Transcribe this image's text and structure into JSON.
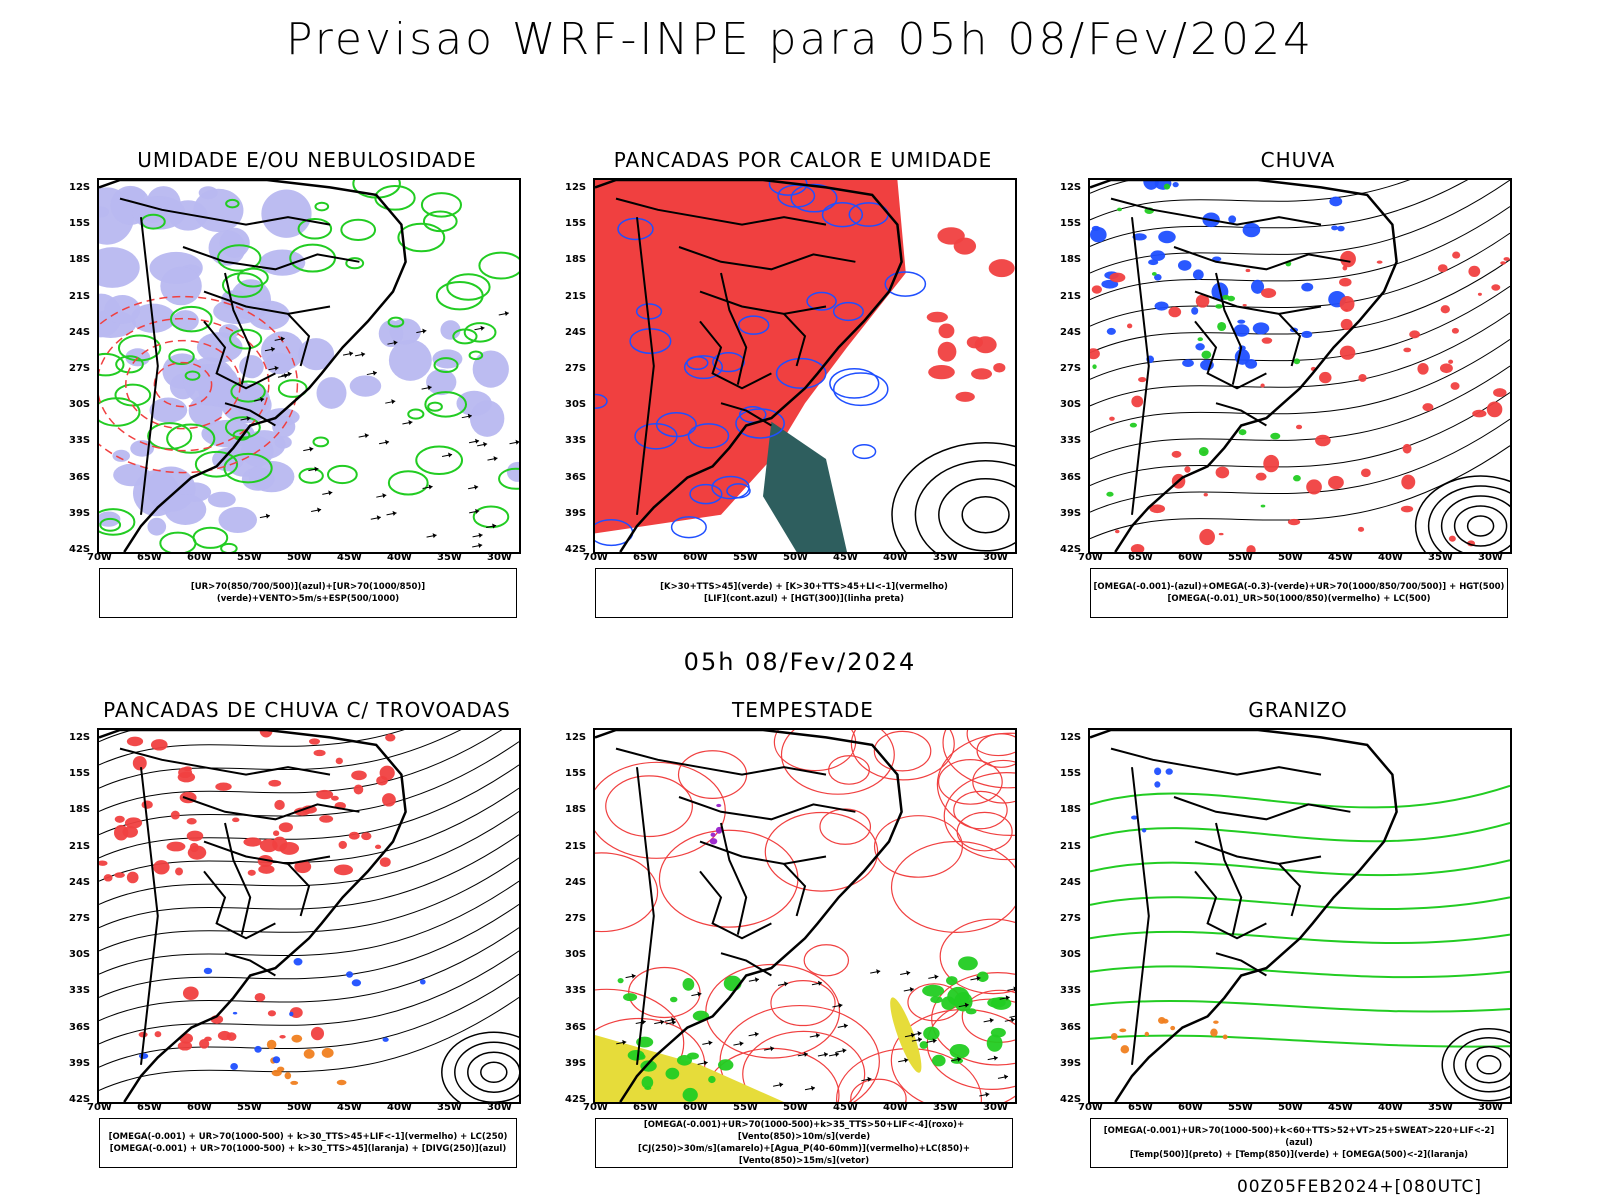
{
  "header": {
    "title": "Previsao WRF-INPE  para 05h 08/Fev/2024",
    "mid_date": "05h 08/Fev/2024",
    "footer": "00Z05FEB2024+[080UTC]"
  },
  "axes": {
    "lat_labels": [
      "12S",
      "15S",
      "18S",
      "21S",
      "24S",
      "27S",
      "30S",
      "33S",
      "36S",
      "39S",
      "42S"
    ],
    "lon_labels": [
      "70W",
      "65W",
      "60W",
      "55W",
      "50W",
      "45W",
      "40W",
      "35W",
      "30W"
    ]
  },
  "panels": [
    {
      "title": "UMIDADE E/OU NEBULOSIDADE",
      "legend": [
        "[UR>70(850/700/500)](azul)+[UR>70(1000/850)](verde)+VENTO>5m/s+ESP(500/1000)"
      ]
    },
    {
      "title": "PANCADAS POR CALOR E UMIDADE",
      "legend": [
        "[K>30+TTS>45](verde)  +  [K>30+TTS>45+LI<-1](vermelho)",
        "[LIF](cont.azul)  +  [HGT(300)](linha preta)"
      ]
    },
    {
      "title": "CHUVA",
      "legend": [
        "[OMEGA(-0.001)-(azul)+OMEGA(-0.3)-(verde)+UR>70(1000/850/700/500)]  +  HGT(500)",
        "[OMEGA(-0.01)_UR>50(1000/850)(vermelho)  +  LC(500)"
      ]
    },
    {
      "title": "PANCADAS DE CHUVA C/ TROVOADAS",
      "legend": [
        "[OMEGA(-0.001) + UR>70(1000-500) + k>30_TTS>45+LIF<-1](vermelho) + LC(250)",
        "[OMEGA(-0.001) + UR>70(1000-500) + k>30_TTS>45](laranja) + [DIVG(250)](azul)"
      ]
    },
    {
      "title": "TEMPESTADE",
      "legend": [
        "[OMEGA(-0.001)+UR>70(1000-500)+k>35_TTS>50+LIF<-4](roxo)+[Vento(850)>10m/s](verde)",
        "[CJ(250)>30m/s](amarelo)+[Agua_P(40-60mm)](vermelho)+LC(850)+[Vento(850)>15m/s](vetor)"
      ]
    },
    {
      "title": "GRANIZO",
      "legend": [
        "[OMEGA(-0.001)+UR>70(1000-500)+k<60+TTS>52+VT>25+SWEAT>220+LIF<-2](azul)",
        "[Temp(500)](preto) + [Temp(850)](verde) + [OMEGA(500)<-2](laranja)"
      ]
    }
  ],
  "colors": {
    "land_outline": "#000000",
    "humidity_blue": "#b8b8f0",
    "green": "#22cc22",
    "red": "#f04040",
    "dark_teal": "#2e5e5e",
    "blue": "#1f4fff",
    "yellow": "#e6dc3a",
    "orange": "#f08020",
    "purple": "#9922cc"
  }
}
